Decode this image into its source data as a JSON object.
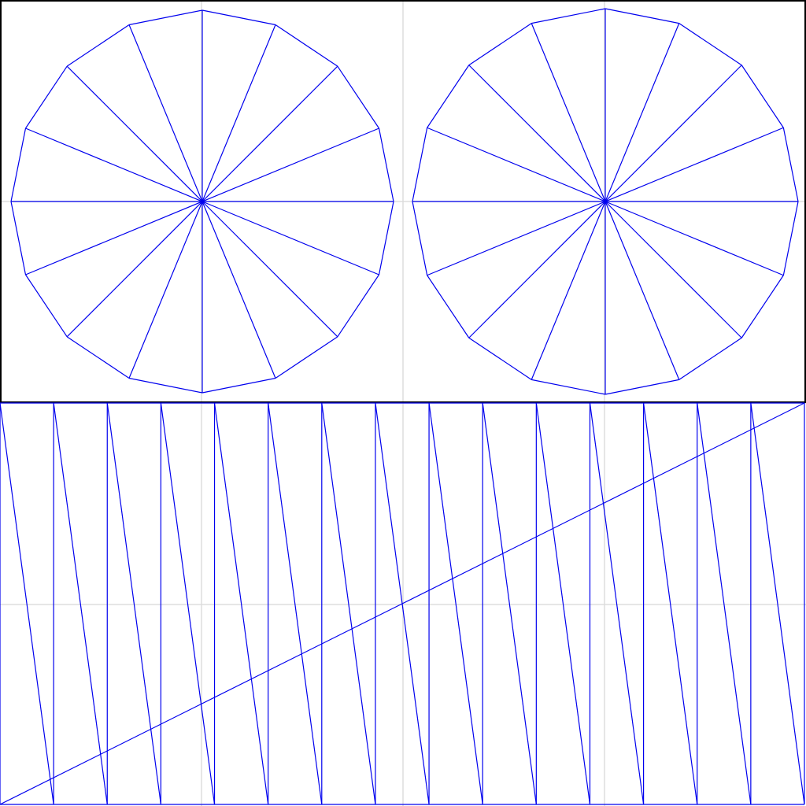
{
  "colors": {
    "background": "#ffffff",
    "frame": "#000000",
    "grid": "#dddddd",
    "wire": "#0000ee"
  },
  "viewport": {
    "frame_visible": true,
    "grid_visible": true,
    "grid_divisions": 4
  },
  "meshes": [
    {
      "name": "disc-left",
      "kind": "triangle-fan-polygon",
      "polygon_sides": 16,
      "first_vertex_angle_deg": 0,
      "center_fan": true
    },
    {
      "name": "disc-right",
      "kind": "triangle-fan-polygon",
      "polygon_sides": 16,
      "first_vertex_angle_deg": 0,
      "center_fan": true
    },
    {
      "name": "strip-quad",
      "kind": "triangle-strip-quad",
      "columns": 15,
      "long_diagonal": true
    }
  ]
}
